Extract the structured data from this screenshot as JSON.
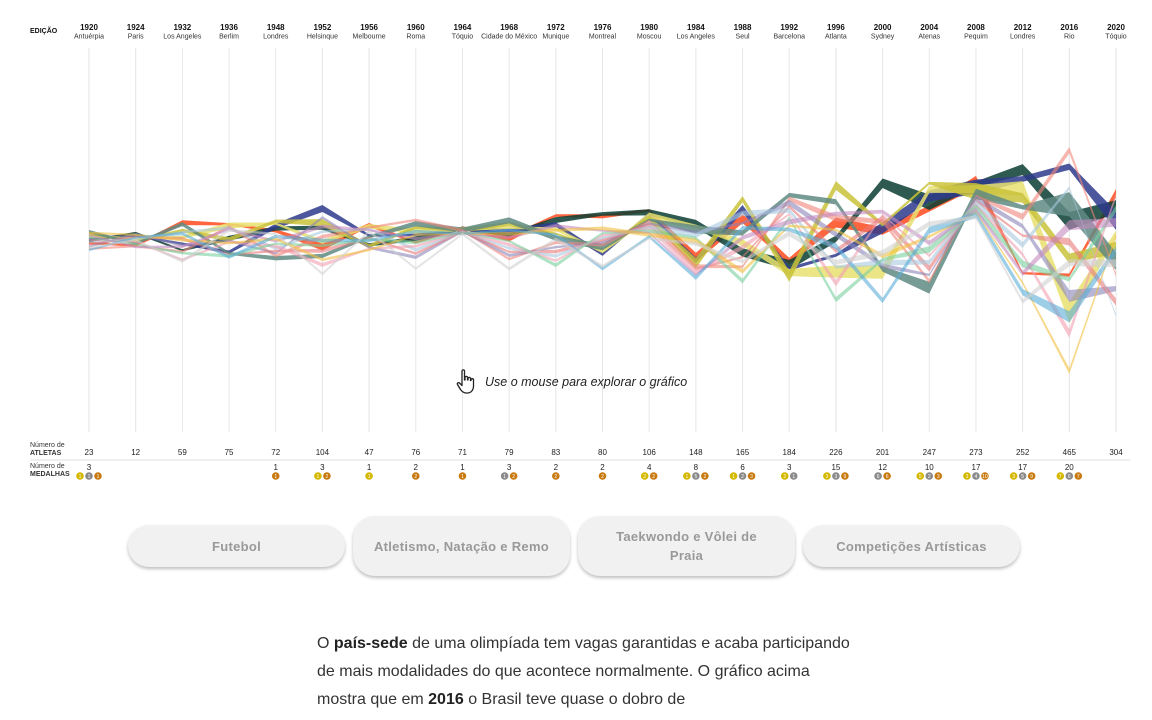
{
  "header": {
    "edicao_label": "EDIÇÃO"
  },
  "rows": {
    "atletas_label_1": "Número de",
    "atletas_label_2": "ATLETAS",
    "medalhas_label_1": "Número de",
    "medalhas_label_2": "MEDALHAS"
  },
  "chart_data": {
    "type": "table",
    "editions": [
      {
        "year": "1920",
        "city": "Antuérpia",
        "athletes": 23,
        "medals": 3,
        "medal_breakdown": [
          1,
          1,
          1
        ]
      },
      {
        "year": "1924",
        "city": "Paris",
        "athletes": 12,
        "medals": null,
        "medal_breakdown": [
          0,
          0,
          0
        ]
      },
      {
        "year": "1932",
        "city": "Los Angeles",
        "athletes": 59,
        "medals": null,
        "medal_breakdown": [
          0,
          0,
          0
        ]
      },
      {
        "year": "1936",
        "city": "Berlim",
        "athletes": 75,
        "medals": null,
        "medal_breakdown": [
          0,
          0,
          0
        ]
      },
      {
        "year": "1948",
        "city": "Londres",
        "athletes": 72,
        "medals": 1,
        "medal_breakdown": [
          0,
          0,
          1
        ]
      },
      {
        "year": "1952",
        "city": "Helsinque",
        "athletes": 104,
        "medals": 3,
        "medal_breakdown": [
          1,
          0,
          2
        ]
      },
      {
        "year": "1956",
        "city": "Melbourne",
        "athletes": 47,
        "medals": 1,
        "medal_breakdown": [
          1,
          0,
          0
        ]
      },
      {
        "year": "1960",
        "city": "Roma",
        "athletes": 76,
        "medals": 2,
        "medal_breakdown": [
          0,
          0,
          2
        ]
      },
      {
        "year": "1964",
        "city": "Tóquio",
        "athletes": 71,
        "medals": 1,
        "medal_breakdown": [
          0,
          0,
          1
        ]
      },
      {
        "year": "1968",
        "city": "Cidade do México",
        "athletes": 79,
        "medals": 3,
        "medal_breakdown": [
          0,
          1,
          2
        ]
      },
      {
        "year": "1972",
        "city": "Munique",
        "athletes": 83,
        "medals": 2,
        "medal_breakdown": [
          0,
          0,
          2
        ]
      },
      {
        "year": "1976",
        "city": "Montreal",
        "athletes": 80,
        "medals": 2,
        "medal_breakdown": [
          0,
          0,
          2
        ]
      },
      {
        "year": "1980",
        "city": "Moscou",
        "athletes": 106,
        "medals": 4,
        "medal_breakdown": [
          2,
          0,
          2
        ]
      },
      {
        "year": "1984",
        "city": "Los Angeles",
        "athletes": 148,
        "medals": 8,
        "medal_breakdown": [
          1,
          5,
          2
        ]
      },
      {
        "year": "1988",
        "city": "Seul",
        "athletes": 165,
        "medals": 6,
        "medal_breakdown": [
          1,
          2,
          3
        ]
      },
      {
        "year": "1992",
        "city": "Barcelona",
        "athletes": 184,
        "medals": 3,
        "medal_breakdown": [
          2,
          1,
          0
        ]
      },
      {
        "year": "1996",
        "city": "Atlanta",
        "athletes": 226,
        "medals": 15,
        "medal_breakdown": [
          3,
          3,
          9
        ]
      },
      {
        "year": "2000",
        "city": "Sydney",
        "athletes": 201,
        "medals": 12,
        "medal_breakdown": [
          0,
          6,
          6
        ]
      },
      {
        "year": "2004",
        "city": "Atenas",
        "athletes": 247,
        "medals": 10,
        "medal_breakdown": [
          5,
          2,
          3
        ]
      },
      {
        "year": "2008",
        "city": "Pequim",
        "athletes": 273,
        "medals": 17,
        "medal_breakdown": [
          3,
          4,
          10
        ]
      },
      {
        "year": "2012",
        "city": "Londres",
        "athletes": 252,
        "medals": 17,
        "medal_breakdown": [
          3,
          5,
          9
        ]
      },
      {
        "year": "2016",
        "city": "Rio",
        "athletes": 465,
        "medals": 20,
        "medal_breakdown": [
          7,
          6,
          7
        ]
      },
      {
        "year": "2020",
        "city": "Tóquio",
        "athletes": 304,
        "medals": null,
        "medal_breakdown": [
          0,
          0,
          0
        ]
      }
    ],
    "stream_colors": [
      "#ff4a1c",
      "#0b3d33",
      "#2e3a8c",
      "#e8e070",
      "#c9c23a",
      "#5f8a82",
      "#f0857a",
      "#8a84b8",
      "#e87a7a",
      "#a8c8e0",
      "#f2a0b0",
      "#7ad0a0",
      "#c58ac0",
      "#f0c040",
      "#5aaed8",
      "#d0d0d0"
    ],
    "medal_colors": {
      "gold": "#d4b800",
      "silver": "#8a8a8a",
      "bronze": "#c87a10"
    }
  },
  "hint": {
    "text": "Use o mouse para explorar o gráfico"
  },
  "buttons": [
    {
      "label": "Futebol"
    },
    {
      "label": "Atletismo, Natação e Remo"
    },
    {
      "label": "Taekwondo e Vôlei de Praia"
    },
    {
      "label": "Competições Artísticas"
    }
  ],
  "paragraph": {
    "p1": "O ",
    "b1": "país-sede",
    "p2": " de uma olimpíada tem vagas garantidas e acaba participando de mais modalidades do que acontece normalmente. O gráfico acima mostra que em ",
    "b2": "2016",
    "p3": " o Brasil teve quase o dobro de"
  }
}
